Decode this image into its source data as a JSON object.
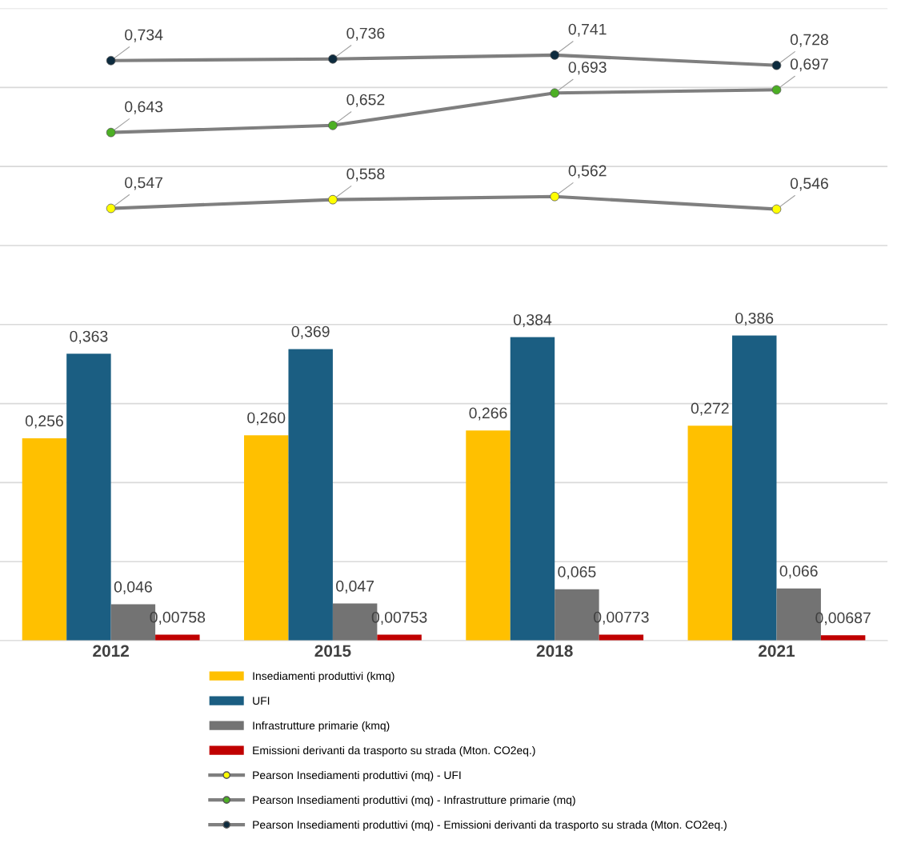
{
  "chart_data": {
    "type": "bar",
    "categories": [
      "2012",
      "2015",
      "2018",
      "2021"
    ],
    "series": [
      {
        "name": "Insediamenti produttivi (kmq)",
        "color": "#ffc000",
        "values": [
          0.256,
          0.26,
          0.266,
          0.272
        ],
        "value_labels": [
          "0,256",
          "0,260",
          "0,266",
          "0,272"
        ]
      },
      {
        "name": "UFI",
        "color": "#1b5e82",
        "values": [
          0.363,
          0.369,
          0.384,
          0.386
        ],
        "value_labels": [
          "0,363",
          "0,369",
          "0,384",
          "0,386"
        ]
      },
      {
        "name": "Infrastrutture primarie (kmq)",
        "color": "#737373",
        "values": [
          0.046,
          0.047,
          0.065,
          0.066
        ],
        "value_labels": [
          "0,046",
          "0,047",
          "0,065",
          "0,066"
        ]
      },
      {
        "name": "Emissioni derivanti da trasporto su strada (Mton. CO2eq.)",
        "color": "#c00000",
        "values": [
          0.00758,
          0.00753,
          0.00773,
          0.00687
        ],
        "value_labels": [
          "0,00758",
          "0,00753",
          "0,00773",
          "0,00687"
        ]
      },
      {
        "name": "Pearson Insediamenti produttivi (mq) - UFI",
        "type": "line",
        "color": "#7f7f7f",
        "colors": [
          "#ffff00",
          "#ffff00",
          "#ffff00",
          "#ffff00"
        ],
        "marker": "circle",
        "values": [
          0.547,
          0.558,
          0.562,
          0.546
        ],
        "value_labels": [
          "0,547",
          "0,558",
          "0,562",
          "0,546"
        ]
      },
      {
        "name": "Pearson Insediamenti produttivi (mq) - Infrastrutture primarie (mq)",
        "type": "line",
        "color": "#7f7f7f",
        "colors": [
          "#4caf24",
          "#4caf24",
          "#4caf24",
          "#4caf24"
        ],
        "marker": "circle",
        "values": [
          0.643,
          0.652,
          0.693,
          0.697
        ],
        "value_labels": [
          "0,643",
          "0,652",
          "0,693",
          "0,697"
        ]
      },
      {
        "name": "Pearson Insediamenti produttivi (mq) - Emissioni derivanti da trasporto su strada (Mton. CO2eq.)",
        "type": "line",
        "color": "#7f7f7f",
        "colors": [
          "#0d2b3e",
          "#0d2b3e",
          "#0d2b3e",
          "#0d2b3e"
        ],
        "marker": "circle",
        "values": [
          0.734,
          0.736,
          0.741,
          0.728
        ],
        "value_labels": [
          "0,734",
          "0,736",
          "0,741",
          "0,728"
        ]
      }
    ],
    "ylim": [
      0,
      0.8
    ],
    "yticks": [
      {
        "value": 0,
        "label": null
      },
      {
        "value": 0.1,
        "label": null
      },
      {
        "value": 0.2,
        "label": null
      },
      {
        "value": 0.3,
        "label": null
      },
      {
        "value": 0.4,
        "label": null
      },
      {
        "value": 0.5,
        "label": null
      },
      {
        "value": 0.6,
        "label": null
      },
      {
        "value": 0.7,
        "label": null
      },
      {
        "value": 0.8,
        "label": null
      }
    ],
    "grid": "y",
    "legend": "bottom",
    "tick_labels": "x"
  }
}
